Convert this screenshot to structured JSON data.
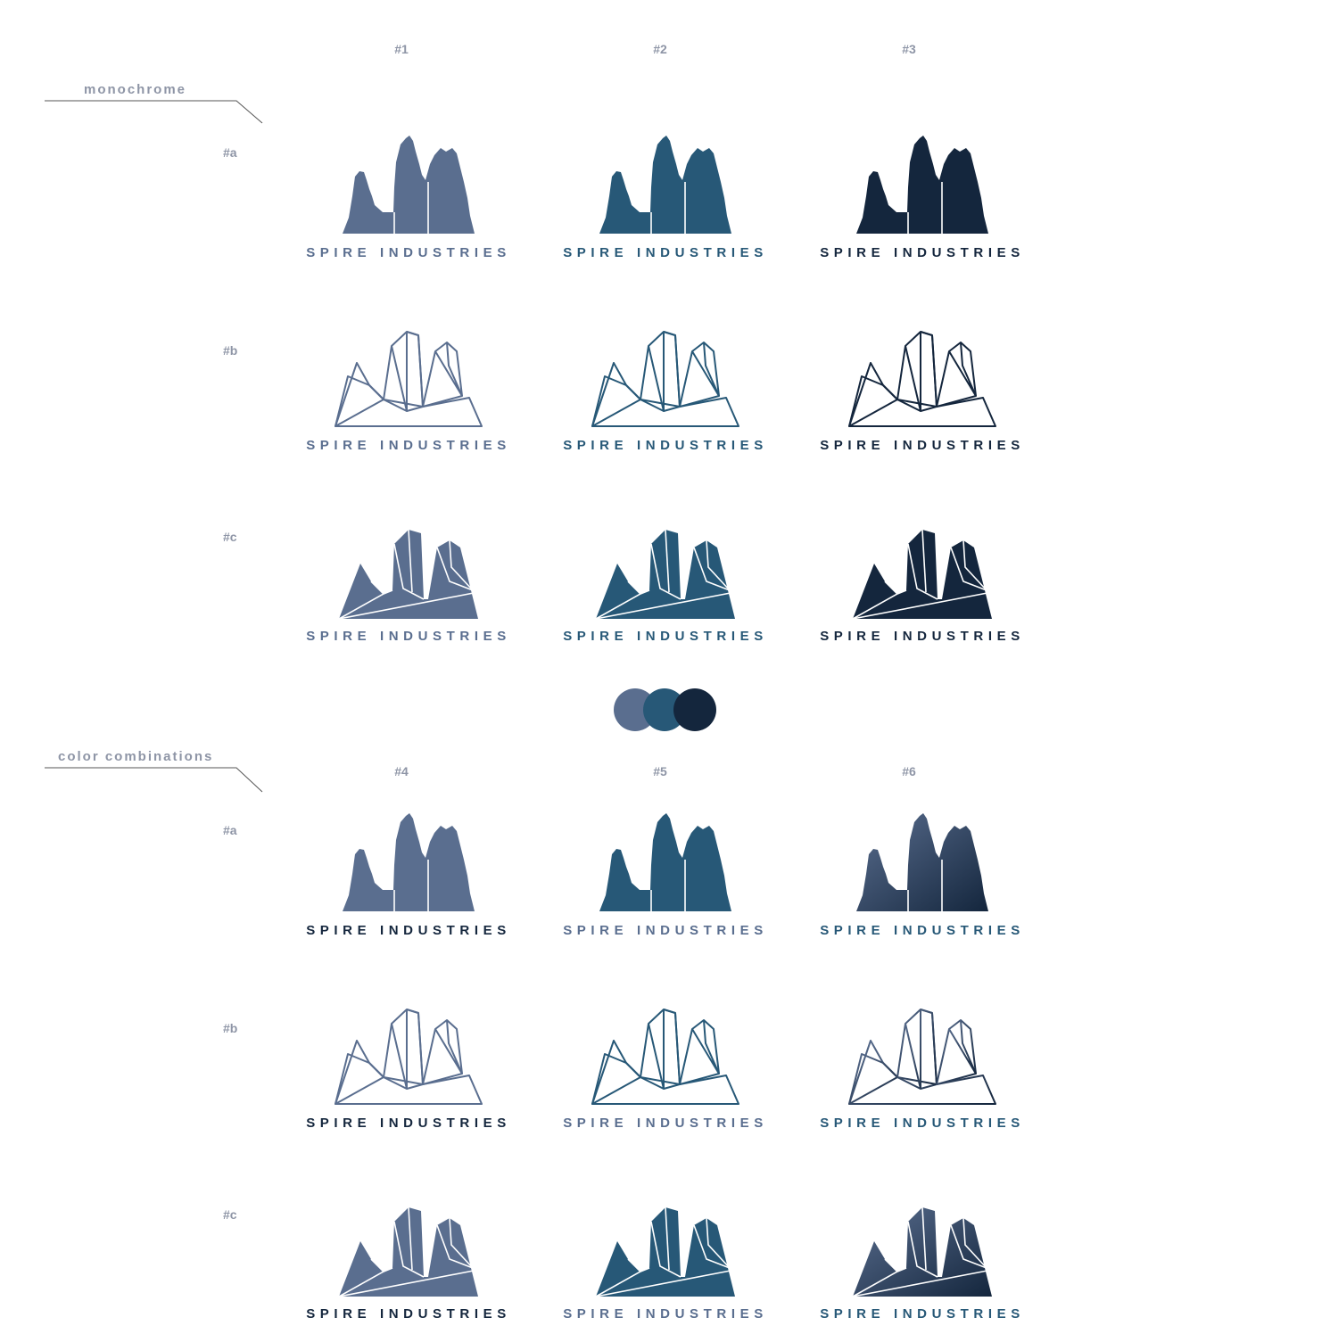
{
  "sections": {
    "monochrome": {
      "title": "monochrome",
      "columns": [
        "#1",
        "#2",
        "#3"
      ],
      "rows": [
        "#a",
        "#b",
        "#c"
      ]
    },
    "color_combinations": {
      "title": "color combinations",
      "columns": [
        "#4",
        "#5",
        "#6"
      ],
      "rows": [
        "#a",
        "#b",
        "#c"
      ]
    }
  },
  "brand": {
    "wordmark": "SPIRE INDUSTRIES"
  },
  "palette": {
    "slate": "#5a6e8f",
    "teal": "#275877",
    "navy": "#14263d"
  },
  "variants": {
    "monochrome": [
      [
        {
          "style": "silhouette",
          "mark": "slate",
          "text": "slate"
        },
        {
          "style": "silhouette",
          "mark": "teal",
          "text": "teal"
        },
        {
          "style": "silhouette",
          "mark": "navy",
          "text": "navy"
        }
      ],
      [
        {
          "style": "outline",
          "mark": "slate",
          "text": "slate"
        },
        {
          "style": "outline",
          "mark": "teal",
          "text": "teal"
        },
        {
          "style": "outline",
          "mark": "navy",
          "text": "navy"
        }
      ],
      [
        {
          "style": "faceted",
          "mark": "slate",
          "text": "slate"
        },
        {
          "style": "faceted",
          "mark": "teal",
          "text": "teal"
        },
        {
          "style": "faceted",
          "mark": "navy",
          "text": "navy"
        }
      ]
    ],
    "color_combinations": [
      [
        {
          "style": "silhouette",
          "mark": "slate",
          "text": "navy"
        },
        {
          "style": "silhouette",
          "mark": "teal",
          "text": "slate"
        },
        {
          "style": "silhouette",
          "mark": "gradient",
          "text": "teal"
        }
      ],
      [
        {
          "style": "outline",
          "mark": "slate",
          "text": "navy"
        },
        {
          "style": "outline",
          "mark": "teal",
          "text": "slate"
        },
        {
          "style": "outline",
          "mark": "gradient",
          "text": "teal"
        }
      ],
      [
        {
          "style": "faceted",
          "mark": "slate",
          "text": "navy"
        },
        {
          "style": "faceted",
          "mark": "teal",
          "text": "slate"
        },
        {
          "style": "faceted",
          "mark": "gradient",
          "text": "teal"
        }
      ]
    ]
  },
  "swatches": [
    "slate",
    "teal",
    "navy"
  ]
}
